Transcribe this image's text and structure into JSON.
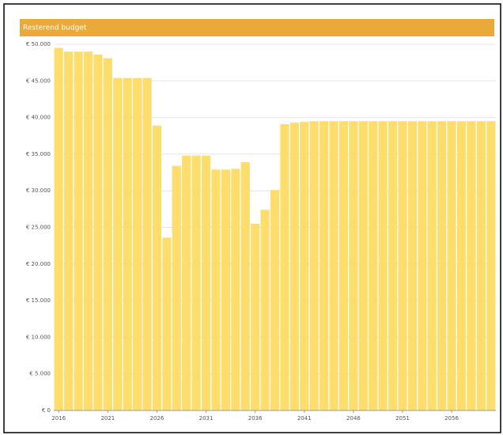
{
  "chart_data": {
    "type": "bar",
    "title": "Resterend budget",
    "categories": [
      "2016",
      null,
      null,
      null,
      null,
      "2021",
      null,
      null,
      null,
      null,
      "2026",
      null,
      null,
      null,
      null,
      "2031",
      null,
      null,
      null,
      null,
      "2036",
      null,
      null,
      null,
      null,
      "2041",
      null,
      null,
      null,
      null,
      "2046",
      null,
      null,
      null,
      null,
      "2051",
      null,
      null,
      null,
      null,
      "2056",
      null,
      null,
      null,
      null
    ],
    "values": [
      49500,
      49000,
      49000,
      49000,
      48600,
      48100,
      45400,
      45400,
      45400,
      45400,
      38900,
      23600,
      33400,
      34800,
      34800,
      34800,
      32900,
      32900,
      33000,
      33900,
      25500,
      27400,
      30100,
      39100,
      39300,
      39400,
      39500,
      39500,
      39500,
      39500,
      39500,
      39500,
      39500,
      39500,
      39500,
      39500,
      39500,
      39500,
      39500,
      39500,
      39500,
      39500,
      39500,
      39500,
      39500
    ],
    "color": "#fedd6c",
    "ylim": [
      0,
      50000
    ],
    "yticks": [
      {
        "value": 0,
        "label": "€ 0"
      },
      {
        "value": 5000,
        "label": "€ 5.000"
      },
      {
        "value": 10000,
        "label": "€ 10.000"
      },
      {
        "value": 15000,
        "label": "€ 15.000"
      },
      {
        "value": 20000,
        "label": "€ 20.000"
      },
      {
        "value": 25000,
        "label": "€ 25.000"
      },
      {
        "value": 30000,
        "label": "€ 30.000"
      },
      {
        "value": 35000,
        "label": "€ 35.000"
      },
      {
        "value": 40000,
        "label": "€ 40.000"
      },
      {
        "value": 45000,
        "label": "€ 45.000"
      },
      {
        "value": 50000,
        "label": "€ 50.000"
      }
    ],
    "grid": true
  }
}
